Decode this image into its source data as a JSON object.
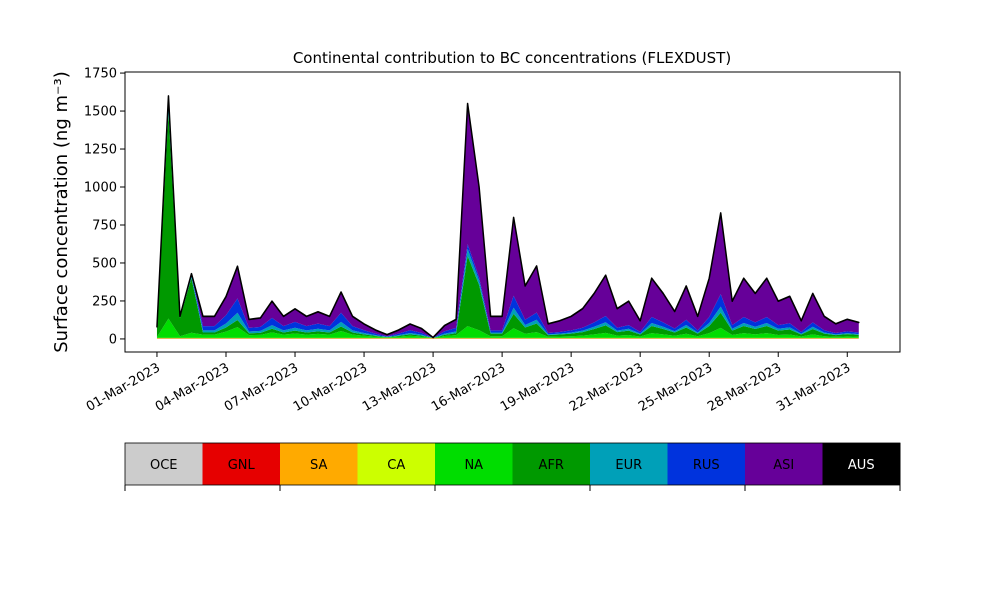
{
  "chart_data": {
    "type": "stacked_area",
    "title": "Continental contribution to BC concentrations (FLEXDUST)",
    "y_label": "Surface concentration (ng m⁻³)",
    "x": [
      "2023-03-01T00:00",
      "2023-03-01T12:00",
      "2023-03-02T00:00",
      "2023-03-02T12:00",
      "2023-03-03T00:00",
      "2023-03-03T12:00",
      "2023-03-04T00:00",
      "2023-03-04T12:00",
      "2023-03-05T00:00",
      "2023-03-05T12:00",
      "2023-03-06T00:00",
      "2023-03-06T12:00",
      "2023-03-07T00:00",
      "2023-03-07T12:00",
      "2023-03-08T00:00",
      "2023-03-08T12:00",
      "2023-03-09T00:00",
      "2023-03-09T12:00",
      "2023-03-10T00:00",
      "2023-03-10T12:00",
      "2023-03-11T00:00",
      "2023-03-11T12:00",
      "2023-03-12T00:00",
      "2023-03-12T12:00",
      "2023-03-13T00:00",
      "2023-03-13T12:00",
      "2023-03-14T00:00",
      "2023-03-14T12:00",
      "2023-03-15T00:00",
      "2023-03-15T12:00",
      "2023-03-16T00:00",
      "2023-03-16T12:00",
      "2023-03-17T00:00",
      "2023-03-17T12:00",
      "2023-03-18T00:00",
      "2023-03-18T12:00",
      "2023-03-19T00:00",
      "2023-03-19T12:00",
      "2023-03-20T00:00",
      "2023-03-20T12:00",
      "2023-03-21T00:00",
      "2023-03-21T12:00",
      "2023-03-22T00:00",
      "2023-03-22T12:00",
      "2023-03-23T00:00",
      "2023-03-23T12:00",
      "2023-03-24T00:00",
      "2023-03-24T12:00",
      "2023-03-25T00:00",
      "2023-03-25T12:00",
      "2023-03-26T00:00",
      "2023-03-26T12:00",
      "2023-03-27T00:00",
      "2023-03-27T12:00",
      "2023-03-28T00:00",
      "2023-03-28T12:00",
      "2023-03-29T00:00",
      "2023-03-29T12:00",
      "2023-03-30T00:00",
      "2023-03-30T12:00",
      "2023-03-31T00:00",
      "2023-03-31T12:00"
    ],
    "series": [
      {
        "name": "OCE",
        "color": "#cccccc",
        "values": [
          1,
          1,
          1,
          1,
          1,
          1,
          1,
          1,
          1,
          1,
          1,
          1,
          1,
          1,
          1,
          1,
          1,
          1,
          1,
          1,
          1,
          1,
          1,
          1,
          1,
          1,
          1,
          1,
          1,
          1,
          1,
          1,
          1,
          1,
          1,
          1,
          1,
          1,
          1,
          1,
          1,
          1,
          1,
          1,
          1,
          1,
          1,
          1,
          1,
          1,
          1,
          1,
          1,
          1,
          1,
          1,
          1,
          1,
          1,
          1,
          1,
          1
        ]
      },
      {
        "name": "GNL",
        "color": "#e60000",
        "values": [
          2,
          2,
          2,
          2,
          2,
          2,
          2,
          2,
          2,
          2,
          2,
          2,
          2,
          2,
          2,
          2,
          2,
          2,
          2,
          2,
          2,
          2,
          2,
          2,
          2,
          2,
          2,
          2,
          2,
          2,
          2,
          2,
          2,
          2,
          2,
          2,
          2,
          2,
          2,
          2,
          2,
          2,
          2,
          2,
          2,
          2,
          2,
          2,
          2,
          2,
          2,
          2,
          2,
          2,
          2,
          2,
          2,
          2,
          2,
          2,
          2,
          2
        ]
      },
      {
        "name": "SA",
        "color": "#ffaa00",
        "values": [
          1,
          1,
          1,
          1,
          1,
          1,
          1,
          1,
          1,
          1,
          1,
          1,
          1,
          1,
          1,
          1,
          1,
          1,
          1,
          1,
          1,
          1,
          1,
          1,
          1,
          1,
          1,
          1,
          1,
          1,
          1,
          1,
          1,
          1,
          1,
          1,
          1,
          1,
          1,
          1,
          1,
          1,
          1,
          1,
          1,
          1,
          1,
          1,
          1,
          1,
          1,
          1,
          1,
          1,
          1,
          1,
          1,
          1,
          1,
          1,
          1,
          1
        ]
      },
      {
        "name": "CA",
        "color": "#ccff00",
        "values": [
          3,
          3,
          3,
          3,
          3,
          3,
          3,
          3,
          3,
          3,
          3,
          3,
          3,
          3,
          3,
          3,
          3,
          3,
          3,
          3,
          3,
          3,
          3,
          3,
          3,
          3,
          3,
          3,
          3,
          3,
          3,
          3,
          3,
          3,
          3,
          3,
          3,
          3,
          3,
          3,
          3,
          3,
          3,
          3,
          3,
          3,
          3,
          3,
          3,
          3,
          3,
          3,
          3,
          3,
          3,
          3,
          3,
          3,
          3,
          3,
          3,
          3
        ]
      },
      {
        "name": "NA",
        "color": "#00dd00",
        "values": [
          6,
          127,
          11,
          34,
          21,
          21,
          41,
          71,
          18,
          20,
          36,
          21,
          29,
          21,
          26,
          21,
          45,
          21,
          14,
          8,
          3,
          8,
          14,
          9,
          0,
          12,
          18,
          77,
          50,
          11,
          11,
          63,
          27,
          38,
          7,
          9,
          11,
          15,
          23,
          33,
          15,
          19,
          9,
          31,
          23,
          14,
          27,
          11,
          31,
          66,
          19,
          31,
          23,
          31,
          19,
          22,
          9,
          23,
          11,
          7,
          10,
          8
        ]
      },
      {
        "name": "AFR",
        "color": "#009900",
        "values": [
          61,
          1353,
          121,
          359,
          14,
          14,
          27,
          47,
          12,
          13,
          24,
          14,
          19,
          14,
          17,
          14,
          30,
          14,
          9,
          5,
          2,
          5,
          9,
          6,
          0,
          8,
          12,
          463,
          298,
          17,
          17,
          95,
          41,
          57,
          11,
          13,
          17,
          23,
          35,
          49,
          23,
          29,
          13,
          47,
          35,
          21,
          41,
          17,
          47,
          99,
          29,
          47,
          35,
          47,
          29,
          33,
          13,
          35,
          17,
          11,
          15,
          12
        ]
      },
      {
        "name": "EUR",
        "color": "#00a0b8",
        "values": [
          3,
          64,
          6,
          17,
          14,
          14,
          27,
          47,
          12,
          13,
          24,
          14,
          19,
          14,
          17,
          14,
          30,
          14,
          9,
          5,
          2,
          5,
          9,
          6,
          0,
          8,
          12,
          46,
          30,
          7,
          7,
          40,
          17,
          24,
          5,
          6,
          7,
          10,
          15,
          21,
          10,
          12,
          6,
          20,
          15,
          9,
          17,
          7,
          20,
          41,
          12,
          20,
          15,
          20,
          12,
          14,
          6,
          15,
          7,
          5,
          6,
          5
        ]
      },
      {
        "name": "RUS",
        "color": "#0033dd",
        "values": [
          2,
          48,
          4,
          12,
          28,
          28,
          54,
          94,
          24,
          26,
          48,
          28,
          38,
          28,
          34,
          28,
          60,
          28,
          18,
          10,
          4,
          10,
          18,
          12,
          1,
          16,
          24,
          31,
          20,
          14,
          14,
          79,
          34,
          47,
          9,
          11,
          14,
          19,
          29,
          41,
          19,
          24,
          11,
          39,
          29,
          17,
          34,
          14,
          39,
          82,
          24,
          39,
          29,
          39,
          24,
          27,
          11,
          29,
          14,
          9,
          12,
          10
        ]
      },
      {
        "name": "ASI",
        "color": "#660099",
        "values": [
          0,
          0,
          0,
          0,
          64,
          64,
          122,
          212,
          55,
          59,
          109,
          64,
          86,
          64,
          77,
          64,
          136,
          64,
          41,
          23,
          10,
          23,
          41,
          28,
          1,
          37,
          55,
          925,
          595,
          92,
          92,
          515,
          222,
          307,
          60,
          73,
          92,
          125,
          190,
          268,
          125,
          157,
          73,
          255,
          190,
          112,
          222,
          92,
          255,
          534,
          157,
          255,
          190,
          255,
          157,
          177,
          73,
          190,
          92,
          60,
          79,
          66
        ]
      },
      {
        "name": "AUS",
        "color": "#000000",
        "values": [
          1,
          1,
          1,
          1,
          1,
          1,
          1,
          1,
          1,
          1,
          1,
          1,
          1,
          1,
          1,
          1,
          1,
          1,
          1,
          1,
          1,
          1,
          1,
          1,
          1,
          1,
          1,
          1,
          1,
          1,
          1,
          1,
          1,
          1,
          1,
          1,
          1,
          1,
          1,
          1,
          1,
          1,
          1,
          1,
          1,
          1,
          1,
          1,
          1,
          1,
          1,
          1,
          1,
          1,
          1,
          1,
          1,
          1,
          1,
          1,
          1,
          1
        ]
      }
    ],
    "xlim": [
      "2023-02-27T14:40",
      "2023-04-02T07:00"
    ],
    "xticks": [
      {
        "value": "2023-03-01T00:00",
        "label": "01-Mar-2023"
      },
      {
        "value": "2023-03-04T00:00",
        "label": "04-Mar-2023"
      },
      {
        "value": "2023-03-07T00:00",
        "label": "07-Mar-2023"
      },
      {
        "value": "2023-03-10T00:00",
        "label": "10-Mar-2023"
      },
      {
        "value": "2023-03-13T00:00",
        "label": "13-Mar-2023"
      },
      {
        "value": "2023-03-16T00:00",
        "label": "16-Mar-2023"
      },
      {
        "value": "2023-03-19T00:00",
        "label": "19-Mar-2023"
      },
      {
        "value": "2023-03-22T00:00",
        "label": "22-Mar-2023"
      },
      {
        "value": "2023-03-25T00:00",
        "label": "25-Mar-2023"
      },
      {
        "value": "2023-03-28T00:00",
        "label": "28-Mar-2023"
      },
      {
        "value": "2023-03-31T00:00",
        "label": "31-Mar-2023"
      }
    ],
    "ylim": [
      -86,
      1757
    ],
    "yticks": [
      0,
      250,
      500,
      750,
      1000,
      1250,
      1500,
      1750
    ],
    "legend": "bottom"
  }
}
